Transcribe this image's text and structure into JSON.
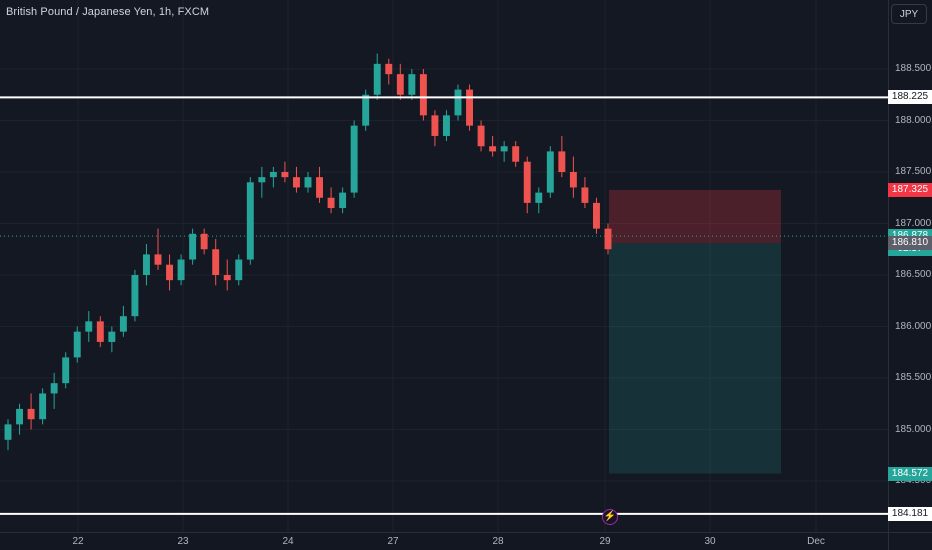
{
  "header": {
    "symbol_title": "British Pound / Japanese Yen, 1h, FXCM"
  },
  "price_scale": {
    "currency": "JPY",
    "ticks": [
      "188.500",
      "188.000",
      "187.500",
      "187.000",
      "186.500",
      "186.000",
      "185.500",
      "185.000",
      "184.500"
    ],
    "tick_values": [
      188.5,
      188.0,
      187.5,
      187.0,
      186.5,
      186.0,
      185.5,
      185.0,
      184.5
    ]
  },
  "price_tags": {
    "upper_line": {
      "label": "188.225",
      "value": 188.225,
      "bg": "#ffffff",
      "fg": "#131722"
    },
    "stop_loss": {
      "label": "187.325",
      "value": 187.325,
      "bg": "#f23645",
      "fg": "#ffffff"
    },
    "last_price": {
      "label": "186.878",
      "value": 186.878,
      "bg": "#26a69a",
      "fg": "#ffffff"
    },
    "countdown": {
      "label": "02:37"
    },
    "entry": {
      "label": "186.810",
      "value": 186.81,
      "bg": "#5d606b",
      "fg": "#ffffff"
    },
    "take_profit": {
      "label": "184.572",
      "value": 184.572,
      "bg": "#26a69a",
      "fg": "#ffffff"
    },
    "lower_line": {
      "label": "184.181",
      "value": 184.181,
      "bg": "#ffffff",
      "fg": "#131722"
    }
  },
  "time_axis": {
    "labels": [
      "22",
      "23",
      "24",
      "27",
      "28",
      "29",
      "30",
      "Dec"
    ]
  },
  "event_icon": {
    "symbol": "⚡",
    "icon": "lightning-icon"
  },
  "colors": {
    "up": "#26a69a",
    "down": "#ef5350",
    "background": "#131722",
    "stop_zone": "rgba(242,54,69,0.25)",
    "target_zone": "rgba(38,166,154,0.18)"
  },
  "chart_data": {
    "type": "candlestick",
    "symbol": "GBPJPY",
    "timeframe": "1h",
    "ylim": [
      184.181,
      188.8
    ],
    "horizontal_lines": [
      188.225,
      184.181
    ],
    "position": {
      "side": "short",
      "entry": 186.81,
      "stop": 187.325,
      "target": 184.572
    },
    "last_price": 186.878,
    "ohlc": [
      [
        184.9,
        185.1,
        184.8,
        185.05
      ],
      [
        185.05,
        185.25,
        184.95,
        185.2
      ],
      [
        185.2,
        185.35,
        185.0,
        185.1
      ],
      [
        185.1,
        185.4,
        185.05,
        185.35
      ],
      [
        185.35,
        185.55,
        185.2,
        185.45
      ],
      [
        185.45,
        185.75,
        185.4,
        185.7
      ],
      [
        185.7,
        186.0,
        185.65,
        185.95
      ],
      [
        185.95,
        186.15,
        185.85,
        186.05
      ],
      [
        186.05,
        186.1,
        185.8,
        185.85
      ],
      [
        185.85,
        186.0,
        185.75,
        185.95
      ],
      [
        185.95,
        186.2,
        185.9,
        186.1
      ],
      [
        186.1,
        186.55,
        186.05,
        186.5
      ],
      [
        186.5,
        186.8,
        186.4,
        186.7
      ],
      [
        186.7,
        186.95,
        186.55,
        186.6
      ],
      [
        186.6,
        186.7,
        186.35,
        186.45
      ],
      [
        186.45,
        186.7,
        186.4,
        186.65
      ],
      [
        186.65,
        186.95,
        186.6,
        186.9
      ],
      [
        186.9,
        186.95,
        186.7,
        186.75
      ],
      [
        186.75,
        186.85,
        186.4,
        186.5
      ],
      [
        186.5,
        186.65,
        186.35,
        186.45
      ],
      [
        186.45,
        186.7,
        186.4,
        186.65
      ],
      [
        186.65,
        187.45,
        186.6,
        187.4
      ],
      [
        187.4,
        187.55,
        187.25,
        187.45
      ],
      [
        187.45,
        187.55,
        187.35,
        187.5
      ],
      [
        187.5,
        187.6,
        187.4,
        187.45
      ],
      [
        187.45,
        187.55,
        187.3,
        187.35
      ],
      [
        187.35,
        187.5,
        187.3,
        187.45
      ],
      [
        187.45,
        187.55,
        187.2,
        187.25
      ],
      [
        187.25,
        187.35,
        187.1,
        187.15
      ],
      [
        187.15,
        187.35,
        187.1,
        187.3
      ],
      [
        187.3,
        188.0,
        187.25,
        187.95
      ],
      [
        187.95,
        188.3,
        187.9,
        188.25
      ],
      [
        188.25,
        188.65,
        188.2,
        188.55
      ],
      [
        188.55,
        188.6,
        188.35,
        188.45
      ],
      [
        188.45,
        188.55,
        188.2,
        188.25
      ],
      [
        188.25,
        188.5,
        188.2,
        188.45
      ],
      [
        188.45,
        188.5,
        188.0,
        188.05
      ],
      [
        188.05,
        188.1,
        187.75,
        187.85
      ],
      [
        187.85,
        188.1,
        187.8,
        188.05
      ],
      [
        188.05,
        188.35,
        188.0,
        188.3
      ],
      [
        188.3,
        188.35,
        187.9,
        187.95
      ],
      [
        187.95,
        188.0,
        187.7,
        187.75
      ],
      [
        187.75,
        187.85,
        187.65,
        187.7
      ],
      [
        187.7,
        187.8,
        187.6,
        187.75
      ],
      [
        187.75,
        187.8,
        187.55,
        187.6
      ],
      [
        187.6,
        187.65,
        187.1,
        187.2
      ],
      [
        187.2,
        187.35,
        187.1,
        187.3
      ],
      [
        187.3,
        187.75,
        187.25,
        187.7
      ],
      [
        187.7,
        187.85,
        187.45,
        187.5
      ],
      [
        187.5,
        187.65,
        187.25,
        187.35
      ],
      [
        187.35,
        187.45,
        187.15,
        187.2
      ],
      [
        187.2,
        187.25,
        186.9,
        186.95
      ],
      [
        186.95,
        187.0,
        186.7,
        186.75
      ]
    ]
  }
}
